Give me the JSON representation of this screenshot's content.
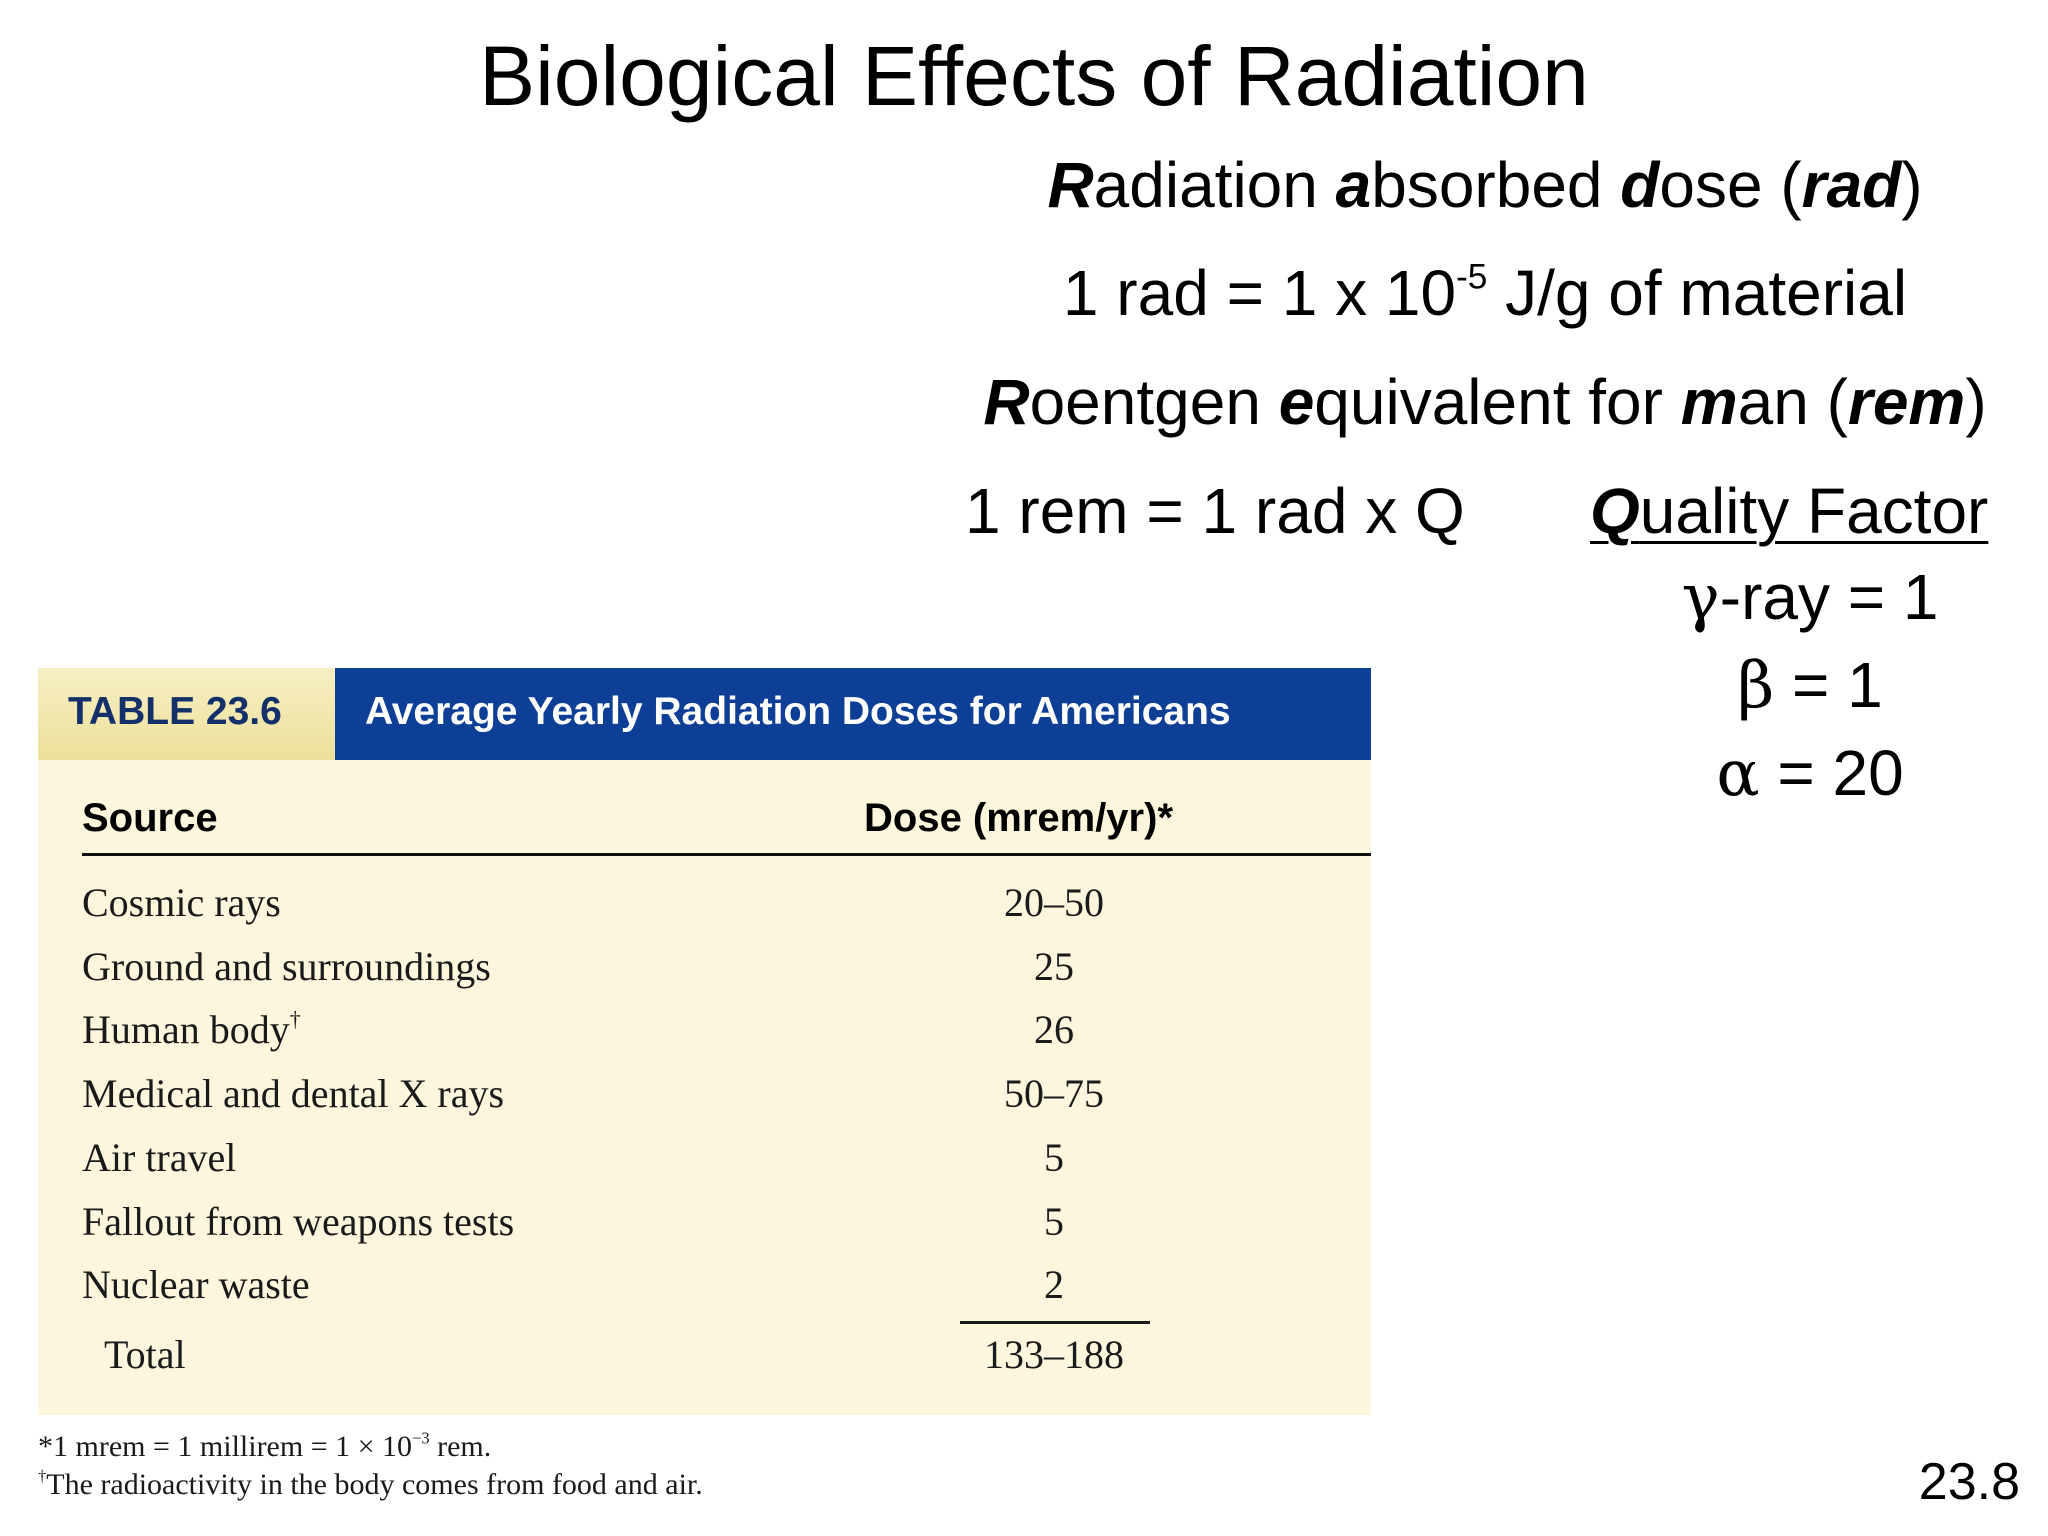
{
  "slide": {
    "title": "Biological Effects of Radiation",
    "page_number": "23.8"
  },
  "definitions": {
    "rad_name": {
      "b1": "R",
      "t1": "adiation ",
      "b2": "a",
      "t2": "bsorbed ",
      "b3": "d",
      "t3": "ose (",
      "b4": "rad",
      "t4": ")"
    },
    "rad_equation": {
      "main": "1 rad = 1 x 10",
      "exponent": "-5",
      "rest": " J/g of material"
    },
    "rem_name": {
      "b1": "R",
      "t1": "oentgen ",
      "b2": "e",
      "t2": "quivalent for ",
      "b3": "m",
      "t3": "an (",
      "b4": "rem",
      "t4": ")"
    },
    "rem_equation": "1 rem = 1 rad x Q"
  },
  "quality_factor": {
    "heading_bold": "Q",
    "heading_rest": "uality Factor",
    "items": [
      {
        "symbol": "γ",
        "text": "-ray = 1"
      },
      {
        "symbol": "β",
        "text": " = 1"
      },
      {
        "symbol": "α",
        "text": " = 20"
      }
    ]
  },
  "table": {
    "number": "TABLE 23.6",
    "caption": "Average Yearly Radiation Doses for Americans",
    "columns": {
      "source": "Source",
      "dose": "Dose (mrem/yr)*"
    },
    "rows": [
      {
        "source": "Cosmic rays",
        "dose": "20–50",
        "mark": ""
      },
      {
        "source": "Ground and surroundings",
        "dose": "25",
        "mark": ""
      },
      {
        "source": "Human body",
        "dose": "26",
        "mark": "†"
      },
      {
        "source": "Medical and dental X rays",
        "dose": "50–75",
        "mark": ""
      },
      {
        "source": "Air travel",
        "dose": "5",
        "mark": ""
      },
      {
        "source": "Fallout from weapons tests",
        "dose": "5",
        "mark": ""
      },
      {
        "source": "Nuclear waste",
        "dose": "2",
        "mark": ""
      }
    ],
    "total": {
      "source": "Total",
      "dose": "133–188"
    },
    "colors": {
      "caption_bg": "#0e3f96",
      "number_text": "#13306a",
      "body_bg": "#fcf7dc"
    }
  },
  "footnotes": [
    {
      "mark": "*",
      "main": "1 mrem = 1 millirem = 1 × 10",
      "exponent": "−3",
      "rest": " rem."
    },
    {
      "mark": "†",
      "main": "The radioactivity in the body comes from food and air.",
      "exponent": "",
      "rest": ""
    }
  ]
}
